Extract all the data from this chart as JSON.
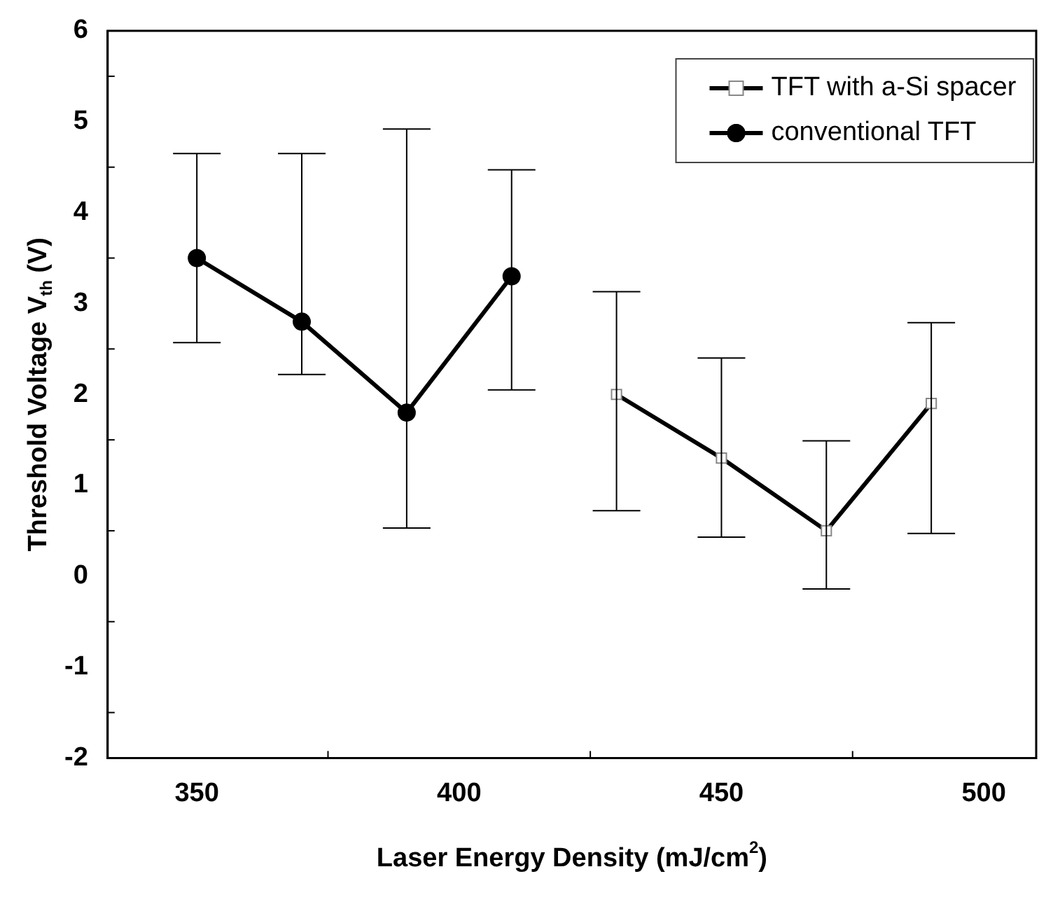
{
  "chart_data": {
    "type": "line",
    "xlabel": "Laser Energy Density (mJ/cm$^{2}$)",
    "ylabel": "Threshold Voltage V$_{th}$ (V)",
    "xlim": [
      333,
      510
    ],
    "xticks": [
      350,
      400,
      450,
      500
    ],
    "ylim": [
      -2,
      6
    ],
    "yticks": [
      -2,
      -1,
      0,
      1,
      2,
      3,
      4,
      5,
      6
    ],
    "grid": false,
    "legend": "top right",
    "line_style": "solid",
    "series": [
      {
        "name": "TFT with a-Si spacer",
        "color": "#000000",
        "marker": "square",
        "x": [
          430,
          450,
          470,
          490
        ],
        "values": [
          2.0,
          1.3,
          0.5,
          1.9
        ],
        "errors": [
          [
            0.72,
            3.13
          ],
          [
            0.43,
            2.4
          ],
          [
            -0.14,
            1.49
          ],
          [
            0.47,
            2.79
          ]
        ]
      },
      {
        "name": "conventional TFT",
        "color": "#000000",
        "marker": "circle",
        "x": [
          350,
          370,
          390,
          410
        ],
        "values": [
          3.5,
          2.8,
          1.8,
          3.3
        ],
        "errors": [
          [
            2.57,
            4.65
          ],
          [
            2.22,
            4.65
          ],
          [
            0.53,
            4.92
          ],
          [
            2.05,
            4.47
          ]
        ]
      }
    ]
  }
}
